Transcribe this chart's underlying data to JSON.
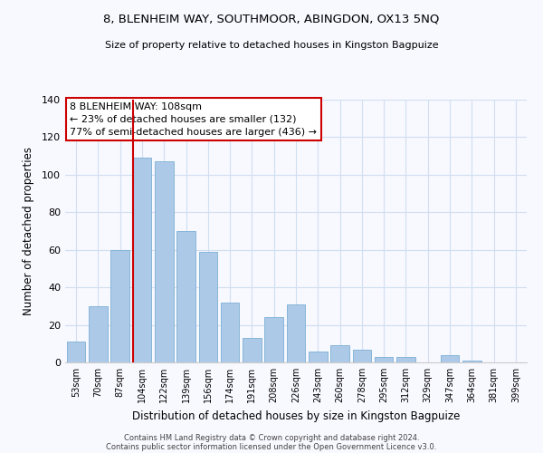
{
  "title": "8, BLENHEIM WAY, SOUTHMOOR, ABINGDON, OX13 5NQ",
  "subtitle": "Size of property relative to detached houses in Kingston Bagpuize",
  "xlabel": "Distribution of detached houses by size in Kingston Bagpuize",
  "ylabel": "Number of detached properties",
  "bar_labels": [
    "53sqm",
    "70sqm",
    "87sqm",
    "104sqm",
    "122sqm",
    "139sqm",
    "156sqm",
    "174sqm",
    "191sqm",
    "208sqm",
    "226sqm",
    "243sqm",
    "260sqm",
    "278sqm",
    "295sqm",
    "312sqm",
    "329sqm",
    "347sqm",
    "364sqm",
    "381sqm",
    "399sqm"
  ],
  "bar_values": [
    11,
    30,
    60,
    109,
    107,
    70,
    59,
    32,
    13,
    24,
    31,
    6,
    9,
    7,
    3,
    3,
    0,
    4,
    1,
    0,
    0
  ],
  "bar_color": "#adc9e8",
  "bar_edge_color": "#7bafd4",
  "vline_x_index": 3,
  "vline_color": "#cc0000",
  "ylim": [
    0,
    140
  ],
  "yticks": [
    0,
    20,
    40,
    60,
    80,
    100,
    120,
    140
  ],
  "annotation_line1": "8 BLENHEIM WAY: 108sqm",
  "annotation_line2": "← 23% of detached houses are smaller (132)",
  "annotation_line3": "77% of semi-detached houses are larger (436) →",
  "annotation_box_color": "#ffffff",
  "annotation_box_edge": "#cc0000",
  "footer_line1": "Contains HM Land Registry data © Crown copyright and database right 2024.",
  "footer_line2": "Contains public sector information licensed under the Open Government Licence v3.0.",
  "background_color": "#f8f8ff",
  "plot_bg_color": "#f8f8ff",
  "grid_color": "#d0dff0"
}
